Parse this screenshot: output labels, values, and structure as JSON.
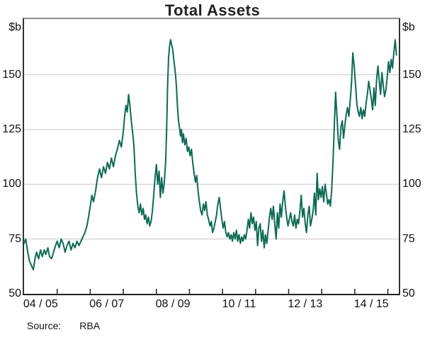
{
  "title": "Total Assets",
  "source": {
    "label": "Source:",
    "value": "RBA"
  },
  "chart_data": {
    "type": "line",
    "title": "Total Assets",
    "y_unit": "$b",
    "ylim": [
      50,
      175.4
    ],
    "y_ticks": [
      50,
      75,
      100,
      125,
      150
    ],
    "y_gridlines": [
      75,
      100,
      125,
      150
    ],
    "grid": "horizontal",
    "legend": "none",
    "xlim_years": [
      0,
      11.33
    ],
    "x_epoch": "years since July 2004",
    "x_tick_positions_years": [
      1,
      2,
      3,
      4,
      5,
      6,
      7,
      8,
      9,
      10,
      11
    ],
    "x_labels": [
      "04 / 05",
      "06 / 07",
      "08 / 09",
      "10 / 11",
      "12 / 13",
      "14 / 15"
    ],
    "x_label_positions_years": [
      0.5,
      2.5,
      4.5,
      6.5,
      8.5,
      10.5
    ],
    "series": [
      {
        "name": "Total Assets",
        "color": "#0e6a55",
        "points": [
          [
            0.0,
            73
          ],
          [
            0.05,
            75
          ],
          [
            0.1,
            70
          ],
          [
            0.16,
            65
          ],
          [
            0.22,
            63
          ],
          [
            0.28,
            61
          ],
          [
            0.33,
            66
          ],
          [
            0.38,
            69
          ],
          [
            0.44,
            66
          ],
          [
            0.5,
            70
          ],
          [
            0.55,
            67
          ],
          [
            0.61,
            70
          ],
          [
            0.66,
            68
          ],
          [
            0.72,
            71
          ],
          [
            0.77,
            67
          ],
          [
            0.83,
            66
          ],
          [
            0.89,
            69
          ],
          [
            0.95,
            72
          ],
          [
            1.0,
            74
          ],
          [
            1.06,
            71
          ],
          [
            1.12,
            75
          ],
          [
            1.18,
            73
          ],
          [
            1.24,
            69
          ],
          [
            1.3,
            72
          ],
          [
            1.36,
            74
          ],
          [
            1.42,
            70
          ],
          [
            1.48,
            73
          ],
          [
            1.54,
            71
          ],
          [
            1.6,
            74
          ],
          [
            1.66,
            72
          ],
          [
            1.72,
            74
          ],
          [
            1.78,
            76
          ],
          [
            1.84,
            78
          ],
          [
            1.9,
            81
          ],
          [
            1.95,
            85
          ],
          [
            2.0,
            90
          ],
          [
            2.05,
            95
          ],
          [
            2.1,
            92
          ],
          [
            2.16,
            97
          ],
          [
            2.22,
            103
          ],
          [
            2.28,
            107
          ],
          [
            2.34,
            103
          ],
          [
            2.4,
            108
          ],
          [
            2.46,
            105
          ],
          [
            2.52,
            110
          ],
          [
            2.58,
            107
          ],
          [
            2.64,
            112
          ],
          [
            2.7,
            108
          ],
          [
            2.76,
            113
          ],
          [
            2.82,
            116
          ],
          [
            2.88,
            120
          ],
          [
            2.94,
            117
          ],
          [
            3.0,
            124
          ],
          [
            3.04,
            131
          ],
          [
            3.08,
            136
          ],
          [
            3.12,
            133
          ],
          [
            3.16,
            141
          ],
          [
            3.2,
            136
          ],
          [
            3.24,
            129
          ],
          [
            3.28,
            124
          ],
          [
            3.32,
            118
          ],
          [
            3.36,
            105
          ],
          [
            3.4,
            96
          ],
          [
            3.44,
            90
          ],
          [
            3.48,
            87
          ],
          [
            3.52,
            91
          ],
          [
            3.56,
            86
          ],
          [
            3.6,
            89
          ],
          [
            3.64,
            84
          ],
          [
            3.68,
            86
          ],
          [
            3.72,
            82
          ],
          [
            3.76,
            85
          ],
          [
            3.8,
            81
          ],
          [
            3.84,
            83
          ],
          [
            3.88,
            88
          ],
          [
            3.92,
            95
          ],
          [
            3.96,
            103
          ],
          [
            4.0,
            109
          ],
          [
            4.04,
            100
          ],
          [
            4.08,
            106
          ],
          [
            4.12,
            94
          ],
          [
            4.16,
            103
          ],
          [
            4.2,
            96
          ],
          [
            4.24,
            101
          ],
          [
            4.28,
            110
          ],
          [
            4.31,
            124
          ],
          [
            4.34,
            145
          ],
          [
            4.37,
            158
          ],
          [
            4.4,
            163
          ],
          [
            4.43,
            166
          ],
          [
            4.46,
            164
          ],
          [
            4.49,
            162
          ],
          [
            4.52,
            158
          ],
          [
            4.55,
            154
          ],
          [
            4.58,
            150
          ],
          [
            4.61,
            144
          ],
          [
            4.64,
            135
          ],
          [
            4.67,
            129
          ],
          [
            4.7,
            126
          ],
          [
            4.73,
            122
          ],
          [
            4.76,
            125
          ],
          [
            4.79,
            119
          ],
          [
            4.82,
            123
          ],
          [
            4.86,
            118
          ],
          [
            4.9,
            121
          ],
          [
            4.94,
            115
          ],
          [
            4.98,
            117
          ],
          [
            5.02,
            113
          ],
          [
            5.06,
            116
          ],
          [
            5.1,
            110
          ],
          [
            5.14,
            105
          ],
          [
            5.18,
            101
          ],
          [
            5.22,
            104
          ],
          [
            5.26,
            97
          ],
          [
            5.3,
            92
          ],
          [
            5.34,
            88
          ],
          [
            5.38,
            86
          ],
          [
            5.42,
            91
          ],
          [
            5.46,
            88
          ],
          [
            5.5,
            92
          ],
          [
            5.54,
            86
          ],
          [
            5.58,
            84
          ],
          [
            5.62,
            81
          ],
          [
            5.66,
            83
          ],
          [
            5.7,
            78
          ],
          [
            5.74,
            80
          ],
          [
            5.78,
            83
          ],
          [
            5.82,
            86
          ],
          [
            5.86,
            91
          ],
          [
            5.9,
            94
          ],
          [
            5.94,
            89
          ],
          [
            5.98,
            84
          ],
          [
            6.02,
            80
          ],
          [
            6.06,
            83
          ],
          [
            6.1,
            78
          ],
          [
            6.14,
            76
          ],
          [
            6.18,
            78
          ],
          [
            6.22,
            75
          ],
          [
            6.26,
            77
          ],
          [
            6.3,
            74
          ],
          [
            6.34,
            78
          ],
          [
            6.38,
            75
          ],
          [
            6.42,
            79
          ],
          [
            6.46,
            74
          ],
          [
            6.5,
            77
          ],
          [
            6.54,
            73
          ],
          [
            6.58,
            76
          ],
          [
            6.62,
            74
          ],
          [
            6.66,
            77
          ],
          [
            6.7,
            75
          ],
          [
            6.74,
            79
          ],
          [
            6.78,
            84
          ],
          [
            6.82,
            80
          ],
          [
            6.86,
            87
          ],
          [
            6.9,
            82
          ],
          [
            6.94,
            85
          ],
          [
            6.98,
            79
          ],
          [
            7.02,
            83
          ],
          [
            7.06,
            72
          ],
          [
            7.1,
            80
          ],
          [
            7.14,
            82
          ],
          [
            7.18,
            74
          ],
          [
            7.22,
            79
          ],
          [
            7.26,
            71
          ],
          [
            7.3,
            77
          ],
          [
            7.34,
            73
          ],
          [
            7.38,
            79
          ],
          [
            7.42,
            85
          ],
          [
            7.46,
            89
          ],
          [
            7.5,
            84
          ],
          [
            7.54,
            90
          ],
          [
            7.58,
            82
          ],
          [
            7.62,
            75
          ],
          [
            7.66,
            87
          ],
          [
            7.7,
            80
          ],
          [
            7.74,
            91
          ],
          [
            7.78,
            85
          ],
          [
            7.82,
            92
          ],
          [
            7.86,
            97
          ],
          [
            7.9,
            90
          ],
          [
            7.94,
            85
          ],
          [
            7.98,
            81
          ],
          [
            8.02,
            84
          ],
          [
            8.06,
            87
          ],
          [
            8.1,
            83
          ],
          [
            8.14,
            81
          ],
          [
            8.18,
            86
          ],
          [
            8.22,
            80
          ],
          [
            8.26,
            84
          ],
          [
            8.3,
            82
          ],
          [
            8.34,
            88
          ],
          [
            8.38,
            95
          ],
          [
            8.42,
            85
          ],
          [
            8.46,
            89
          ],
          [
            8.5,
            82
          ],
          [
            8.54,
            78
          ],
          [
            8.58,
            86
          ],
          [
            8.62,
            90
          ],
          [
            8.66,
            81
          ],
          [
            8.7,
            84
          ],
          [
            8.74,
            88
          ],
          [
            8.78,
            96
          ],
          [
            8.82,
            86
          ],
          [
            8.86,
            105
          ],
          [
            8.9,
            93
          ],
          [
            8.94,
            98
          ],
          [
            8.98,
            94
          ],
          [
            9.02,
            99
          ],
          [
            9.06,
            92
          ],
          [
            9.1,
            100
          ],
          [
            9.14,
            96
          ],
          [
            9.18,
            91
          ],
          [
            9.22,
            93
          ],
          [
            9.26,
            90
          ],
          [
            9.3,
            97
          ],
          [
            9.34,
            110
          ],
          [
            9.38,
            127
          ],
          [
            9.42,
            142
          ],
          [
            9.46,
            131
          ],
          [
            9.5,
            120
          ],
          [
            9.54,
            116
          ],
          [
            9.58,
            126
          ],
          [
            9.62,
            129
          ],
          [
            9.66,
            121
          ],
          [
            9.7,
            127
          ],
          [
            9.74,
            132
          ],
          [
            9.78,
            135
          ],
          [
            9.82,
            131
          ],
          [
            9.86,
            138
          ],
          [
            9.9,
            146
          ],
          [
            9.94,
            160
          ],
          [
            9.98,
            154
          ],
          [
            10.02,
            146
          ],
          [
            10.06,
            137
          ],
          [
            10.1,
            133
          ],
          [
            10.14,
            131
          ],
          [
            10.18,
            135
          ],
          [
            10.22,
            130
          ],
          [
            10.26,
            134
          ],
          [
            10.3,
            131
          ],
          [
            10.34,
            137
          ],
          [
            10.38,
            141
          ],
          [
            10.42,
            147
          ],
          [
            10.46,
            143
          ],
          [
            10.5,
            139
          ],
          [
            10.54,
            134
          ],
          [
            10.58,
            144
          ],
          [
            10.62,
            136
          ],
          [
            10.66,
            148
          ],
          [
            10.7,
            154
          ],
          [
            10.74,
            147
          ],
          [
            10.78,
            141
          ],
          [
            10.82,
            151
          ],
          [
            10.86,
            145
          ],
          [
            10.9,
            140
          ],
          [
            10.94,
            143
          ],
          [
            10.98,
            149
          ],
          [
            11.02,
            156
          ],
          [
            11.06,
            151
          ],
          [
            11.1,
            157
          ],
          [
            11.14,
            153
          ],
          [
            11.18,
            160
          ],
          [
            11.22,
            166
          ],
          [
            11.26,
            159
          ]
        ]
      }
    ]
  }
}
